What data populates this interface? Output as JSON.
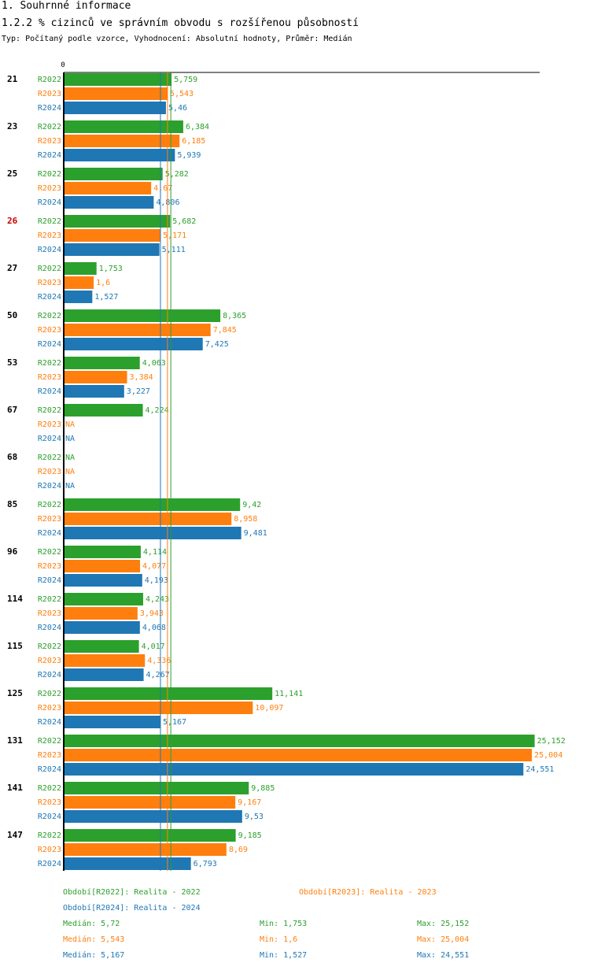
{
  "header": {
    "title": "1. Souhrnné informace",
    "subtitle": "1.2.2 % cizinců ve správním obvodu s rozšířenou působností",
    "meta": "Typ: Počítaný podle vzorce, Vyhodnocení: Absolutní hodnoty, Průměr: Medián"
  },
  "colors": {
    "R2022": "#2ca02c",
    "R2023": "#ff7f0e",
    "R2024": "#1f77b4",
    "highlight": "#cc0000"
  },
  "chart_data": {
    "type": "bar",
    "orientation": "horizontal",
    "axis_zero_label": "0",
    "xlim": [
      0,
      25.5
    ],
    "na_label": "NA",
    "series_names": [
      "R2022",
      "R2023",
      "R2024"
    ],
    "categories": [
      "21",
      "23",
      "25",
      "26",
      "27",
      "50",
      "53",
      "67",
      "68",
      "85",
      "96",
      "114",
      "115",
      "125",
      "131",
      "141",
      "147"
    ],
    "highlight_category": "26",
    "series": [
      {
        "name": "R2022",
        "values": [
          5.759,
          6.384,
          5.282,
          5.682,
          1.753,
          8.365,
          4.063,
          4.224,
          null,
          9.42,
          4.114,
          4.243,
          4.017,
          11.141,
          25.152,
          9.885,
          9.185
        ],
        "labels": [
          "5,759",
          "6,384",
          "5,282",
          "5,682",
          "1,753",
          "8,365",
          "4,063",
          "4,224",
          "NA",
          "9,42",
          "4,114",
          "4,243",
          "4,017",
          "11,141",
          "25,152",
          "9,885",
          "9,185"
        ]
      },
      {
        "name": "R2023",
        "values": [
          5.543,
          6.185,
          4.67,
          5.171,
          1.6,
          7.845,
          3.384,
          null,
          null,
          8.958,
          4.077,
          3.943,
          4.336,
          10.097,
          25.004,
          9.167,
          8.69
        ],
        "labels": [
          "5,543",
          "6,185",
          "4,67",
          "5,171",
          "1,6",
          "7,845",
          "3,384",
          "NA",
          "NA",
          "8,958",
          "4,077",
          "3,943",
          "4,336",
          "10,097",
          "25,004",
          "9,167",
          "8,69"
        ]
      },
      {
        "name": "R2024",
        "values": [
          5.46,
          5.939,
          4.806,
          5.111,
          1.527,
          7.425,
          3.227,
          null,
          null,
          9.481,
          4.193,
          4.068,
          4.267,
          5.167,
          24.551,
          9.53,
          6.793
        ],
        "labels": [
          "5,46",
          "5,939",
          "4,806",
          "5,111",
          "1,527",
          "7,425",
          "3,227",
          "NA",
          "NA",
          "9,481",
          "4,193",
          "4,068",
          "4,267",
          "5,167",
          "24,551",
          "9,53",
          "6,793"
        ]
      }
    ],
    "median_lines": {
      "R2022": 5.72,
      "R2023": 5.543,
      "R2024": 5.167
    }
  },
  "legend": {
    "r2022": "Období[R2022]: Realita - 2022",
    "r2023": "Období[R2023]: Realita - 2023",
    "r2024": "Období[R2024]: Realita - 2024"
  },
  "stats": [
    {
      "median": "Medián: 5,72",
      "min": "Min: 1,753",
      "max": "Max: 25,152"
    },
    {
      "median": "Medián: 5,543",
      "min": "Min: 1,6",
      "max": "Max: 25,004"
    },
    {
      "median": "Medián: 5,167",
      "min": "Min: 1,527",
      "max": "Max: 24,551"
    }
  ]
}
